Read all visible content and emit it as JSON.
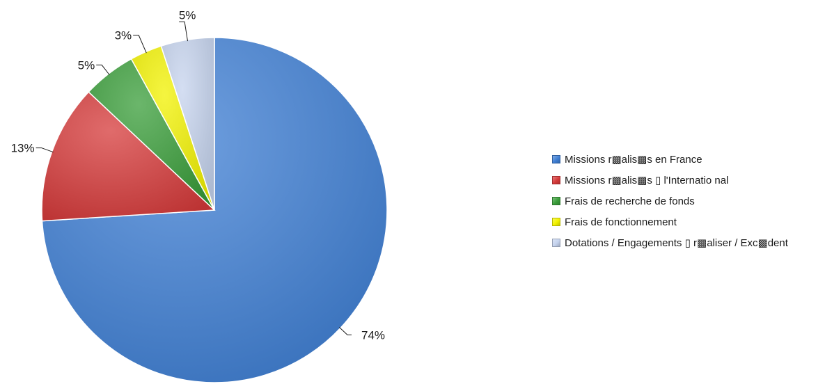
{
  "chart_data": {
    "type": "pie",
    "title": "",
    "categories": [
      "Missions réalisées en France",
      "Missions réalisées à l'International",
      "Frais de recherche de fonds",
      "Frais de fonctionnement",
      "Dotations / Engagements à réaliser / Excédent"
    ],
    "legend_labels": [
      "Missions  r▩alis▩s  en France",
      "Missions  r▩alis▩s  ▯ l'Internatio nal",
      "Frais de  recherche  de fonds",
      "Frais de  fonctionnement",
      "Dotations  / Engagements  ▯ r▩aliser  / Exc▩dent"
    ],
    "values": [
      74,
      13,
      5,
      3,
      5
    ],
    "data_labels": [
      "74%",
      "13%",
      "5%",
      "3%",
      "5%"
    ],
    "colors": [
      "#3f7fd4",
      "#d63a3a",
      "#3a9e3a",
      "#f2f200",
      "#c5d3ee"
    ],
    "legend_position": "right",
    "start_angle_deg": 0,
    "direction": "clockwise"
  }
}
